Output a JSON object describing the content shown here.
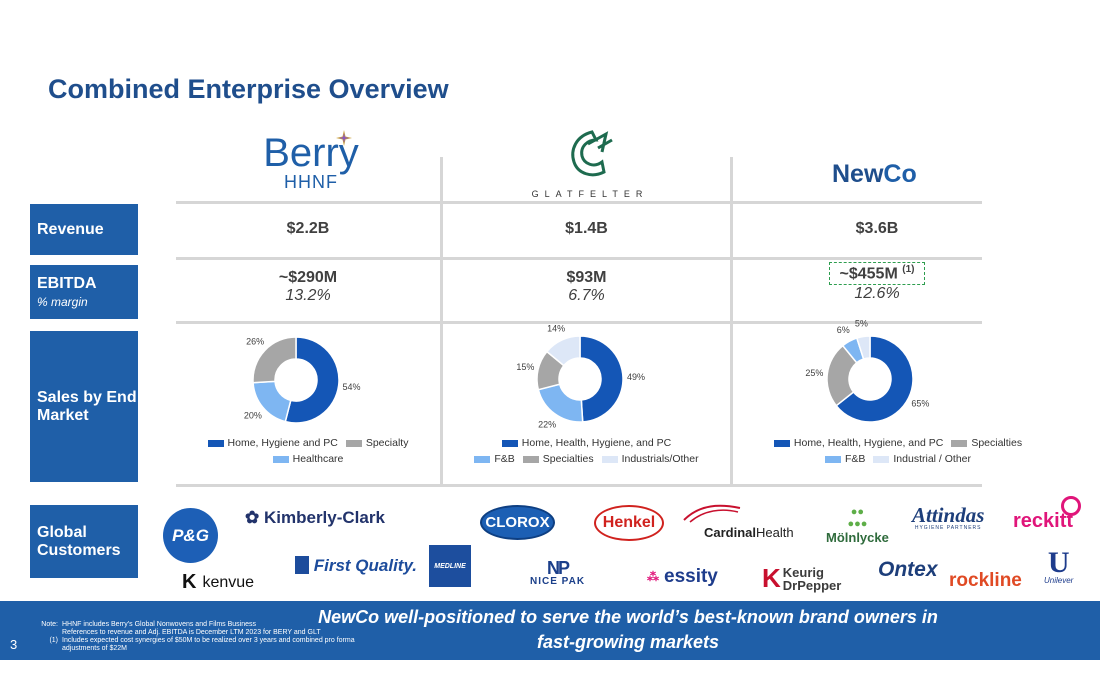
{
  "title": "Combined Enterprise Overview",
  "logos": {
    "berry_main": "Berry",
    "berry_sub": "HHNF",
    "glatfelter": "GLATFELTER",
    "newco_part1": "New",
    "newco_part2": "Co"
  },
  "row_labels": {
    "revenue": "Revenue",
    "ebitda": "EBITDA",
    "ebitda_sub": "% margin",
    "sales": "Sales by End Market",
    "customers": "Global Customers"
  },
  "revenue": [
    "$2.2B",
    "$1.4B",
    "$3.6B"
  ],
  "ebitda": [
    {
      "value": "~$290M",
      "margin": "13.2%"
    },
    {
      "value": "$93M",
      "margin": "6.7%"
    },
    {
      "value": "~$455M",
      "footnote": "(1)",
      "margin": "12.6%"
    }
  ],
  "colors": {
    "navy": "#1f5fa8",
    "dark_blue": "#1456b6",
    "gray": "#a6a6a6",
    "light_blue": "#7eb6f2",
    "very_light_blue": "#dde7f7"
  },
  "chart_data": [
    {
      "type": "pie",
      "donut": true,
      "labels": [
        "Home, Hygiene and PC",
        "Healthcare",
        "Specialty"
      ],
      "values": [
        54,
        20,
        26
      ],
      "value_labels": [
        "54%",
        "20%",
        "26%"
      ],
      "colors": [
        "#1456b6",
        "#7eb6f2",
        "#a6a6a6"
      ],
      "legend_rows": [
        [
          {
            "label": "Home, Hygiene and PC",
            "color": "#1456b6"
          },
          {
            "label": "Specialty",
            "color": "#a6a6a6"
          }
        ],
        [
          {
            "label": "Healthcare",
            "color": "#7eb6f2"
          }
        ]
      ]
    },
    {
      "type": "pie",
      "donut": true,
      "labels": [
        "Home, Health, Hygiene, and PC",
        "F&B",
        "Specialties",
        "Industrials/Other"
      ],
      "values": [
        49,
        22,
        15,
        14
      ],
      "value_labels": [
        "49%",
        "22%",
        "15%",
        "14%"
      ],
      "colors": [
        "#1456b6",
        "#7eb6f2",
        "#a6a6a6",
        "#dde7f7"
      ],
      "legend_rows": [
        [
          {
            "label": "Home, Health, Hygiene, and PC",
            "color": "#1456b6"
          }
        ],
        [
          {
            "label": "F&B",
            "color": "#7eb6f2"
          },
          {
            "label": "Specialties",
            "color": "#a6a6a6"
          },
          {
            "label": "Industrials/Other",
            "color": "#dde7f7"
          }
        ]
      ]
    },
    {
      "type": "pie",
      "donut": true,
      "labels": [
        "Home, Health, Hygiene, and PC",
        "Specialties",
        "F&B",
        "Industrial / Other"
      ],
      "values": [
        65,
        25,
        6,
        5
      ],
      "value_labels": [
        "65%",
        "25%",
        "6%",
        "5%"
      ],
      "colors": [
        "#1456b6",
        "#a6a6a6",
        "#7eb6f2",
        "#dde7f7"
      ],
      "legend_rows": [
        [
          {
            "label": "Home, Health, Hygiene, and PC",
            "color": "#1456b6"
          },
          {
            "label": "Specialties",
            "color": "#a6a6a6"
          }
        ],
        [
          {
            "label": "F&B",
            "color": "#7eb6f2"
          },
          {
            "label": "Industrial / Other",
            "color": "#dde7f7"
          }
        ]
      ]
    }
  ],
  "customers": {
    "pg": "P&G",
    "kimberly_clark": "Kimberly-Clark",
    "clorox": "CLOROX",
    "henkel": "Henkel",
    "cardinal_1": "Cardinal",
    "cardinal_2": "Health",
    "molnlycke": "Mölnlycke",
    "attindas": "Attindas",
    "attindas_sub": "HYGIENE PARTNERS",
    "reckitt": "reckitt",
    "kenvue": "kenvue",
    "first_quality": "First Quality.",
    "medline": "MEDLINE",
    "nice_pak_top": "NP",
    "nice_pak": "NICE PAK",
    "essity": "essity",
    "keurig_1": "Keurig",
    "keurig_2": "DrPepper",
    "ontex": "Ontex",
    "rockline": "rockline",
    "unilever": "Unilever"
  },
  "footer": {
    "page_number": "3",
    "note_key": "Note:",
    "note_1": "HHNF includes Berry’s Global Nonwovens and Films Business",
    "note_2": "References to revenue and Adj. EBITDA is December LTM 2023 for BERY and GLT",
    "note_3_key": "(1)",
    "note_3": "Includes expected cost synergies of $50M to be realized over 3 years and combined pro forma adjustments of $22M",
    "tagline": "NewCo well-positioned to serve the world’s best-known brand owners in fast-growing markets"
  }
}
